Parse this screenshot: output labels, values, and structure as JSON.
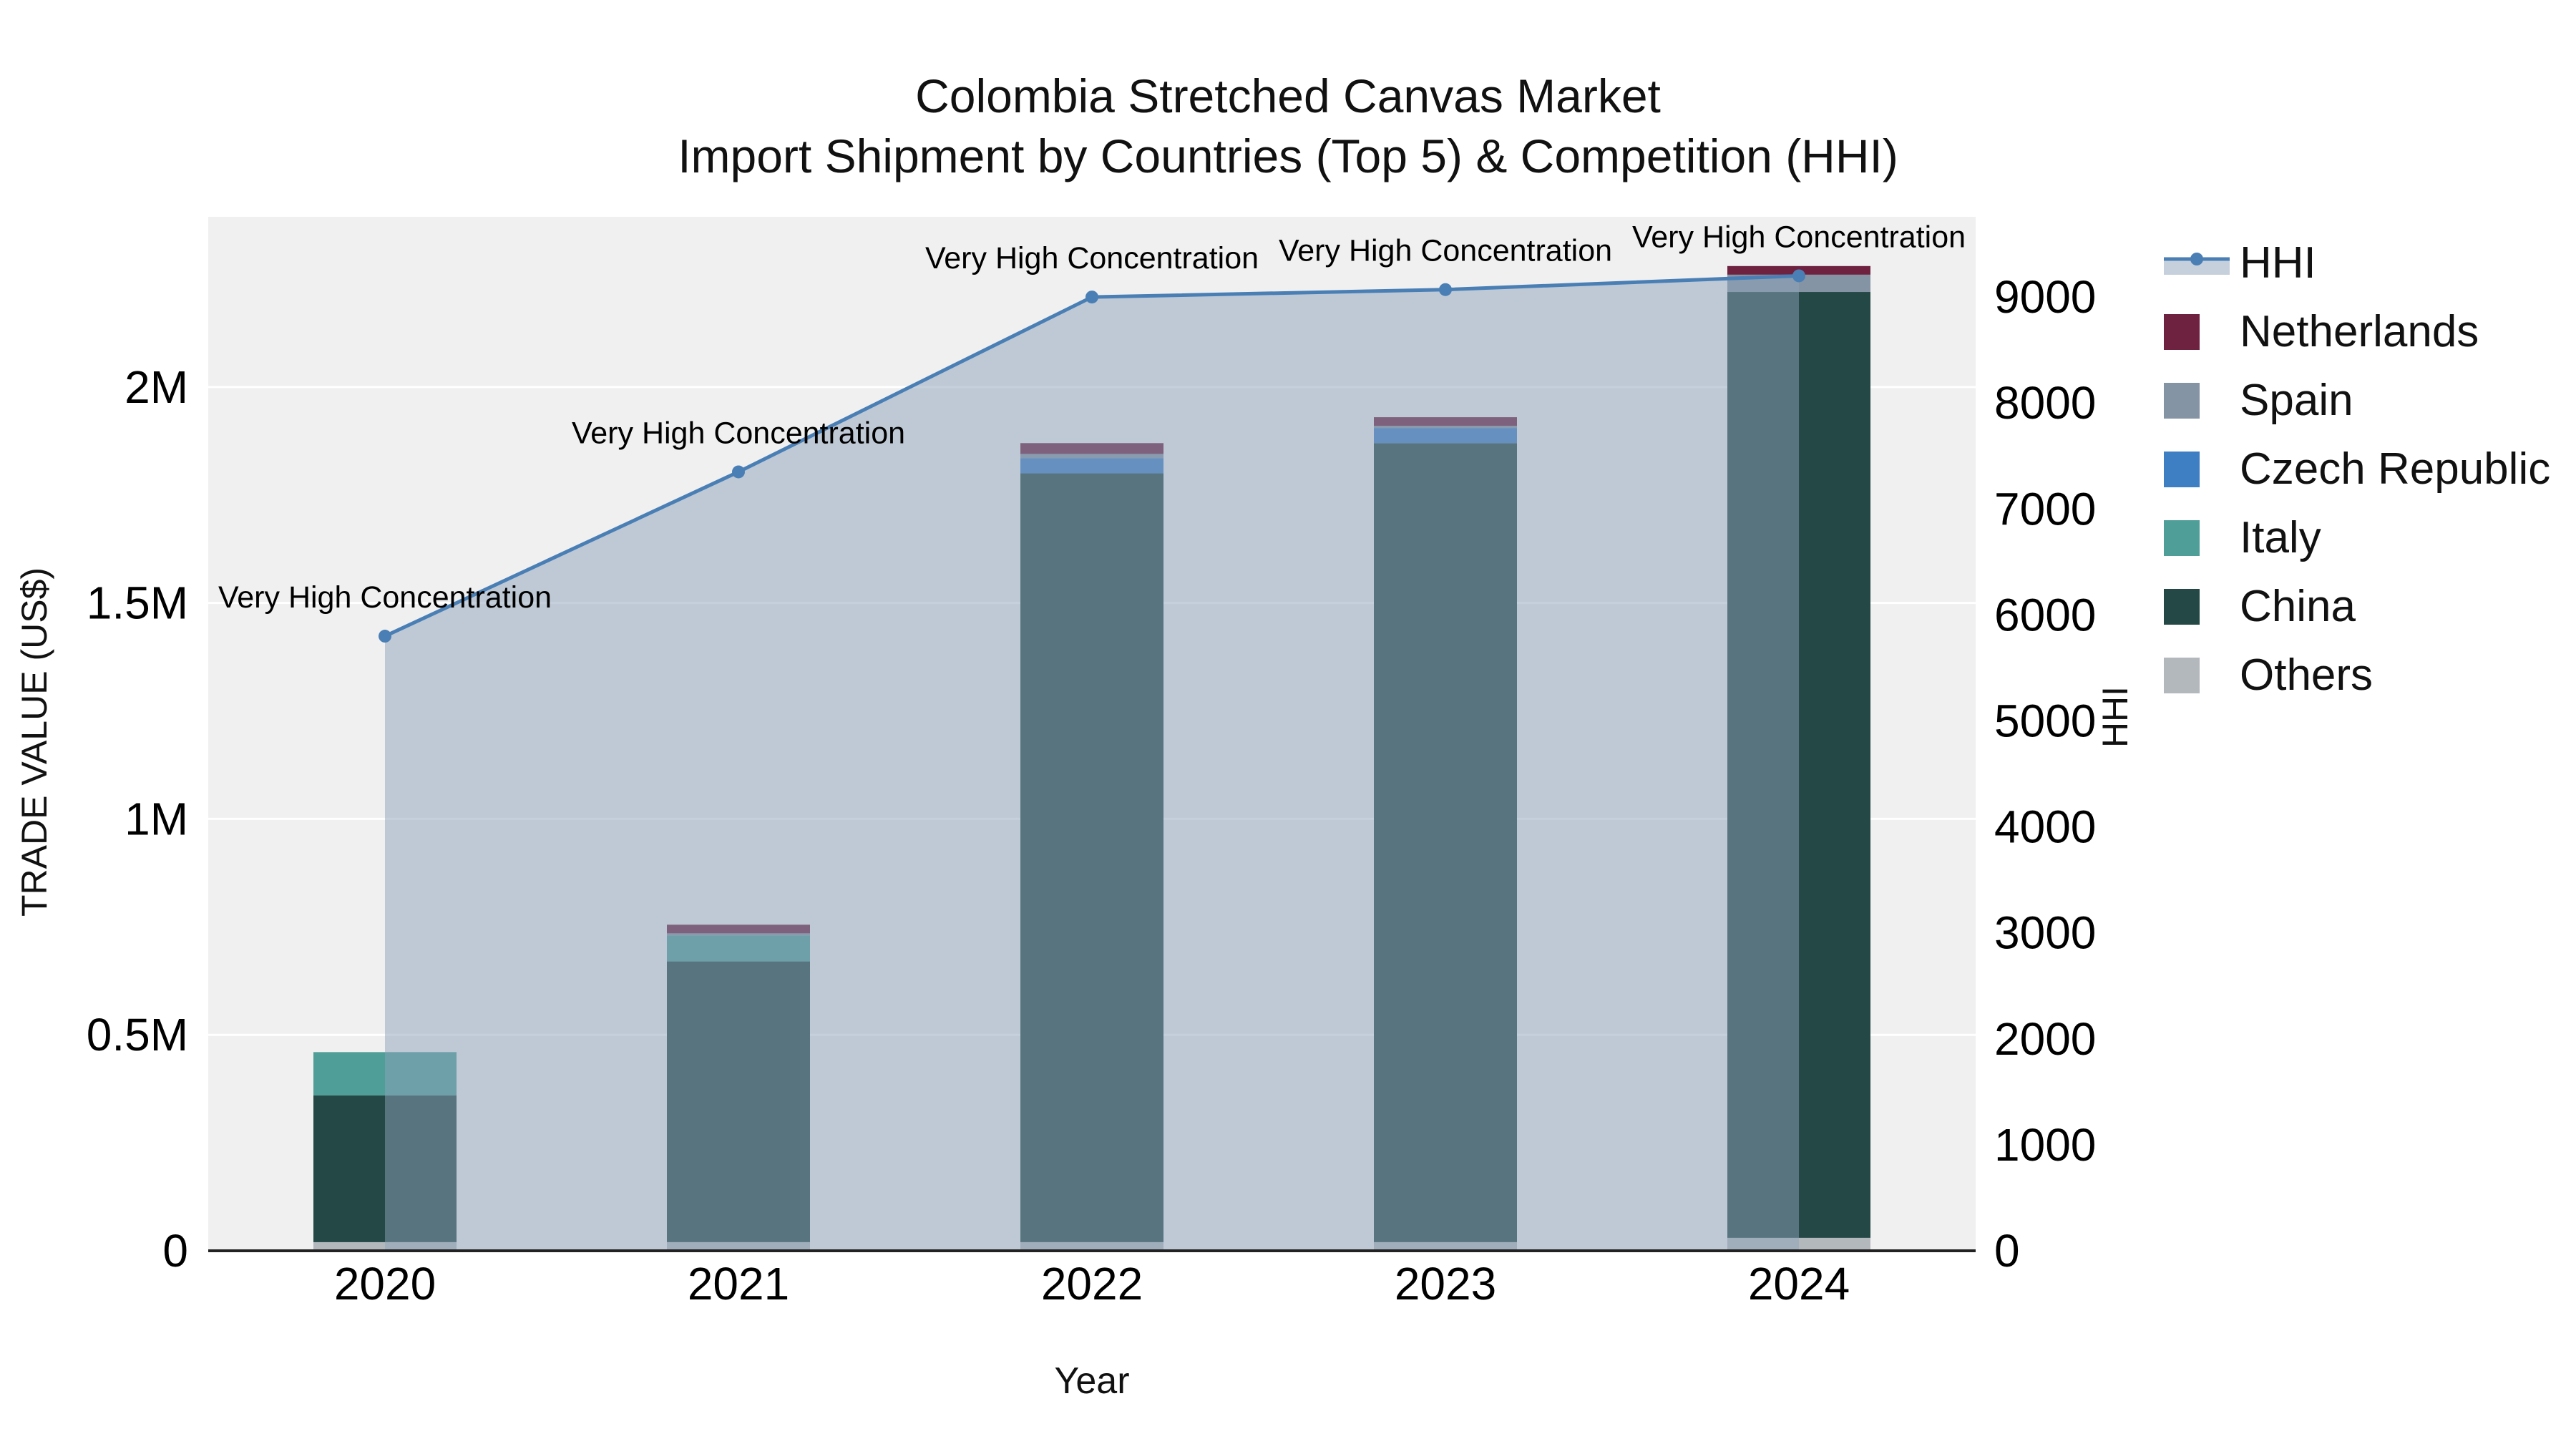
{
  "chart_data": {
    "type": "bar+line",
    "title": "Colombia Stretched Canvas Market",
    "subtitle": "Import Shipment by Countries (Top 5) & Competition (HHI)",
    "xlabel": "Year",
    "ylabel_left": "TRADE VALUE (US$)",
    "ylabel_right": "HHI",
    "categories": [
      "2020",
      "2021",
      "2022",
      "2023",
      "2024"
    ],
    "bar_unit": "million US$",
    "series": [
      {
        "name": "Others",
        "color": "#b3b8bc",
        "values": [
          0.02,
          0.02,
          0.02,
          0.02,
          0.03
        ]
      },
      {
        "name": "China",
        "color": "#234845",
        "values": [
          0.34,
          0.65,
          1.78,
          1.85,
          2.19
        ]
      },
      {
        "name": "Italy",
        "color": "#4f9e98",
        "values": [
          0.1,
          0.06,
          0,
          0,
          0
        ]
      },
      {
        "name": "Czech Republic",
        "color": "#3e7fc4",
        "values": [
          0,
          0,
          0.035,
          0.035,
          0
        ]
      },
      {
        "name": "Spain",
        "color": "#8494a4",
        "values": [
          0,
          0.005,
          0.01,
          0.005,
          0.04
        ]
      },
      {
        "name": "Netherlands",
        "color": "#6e2240",
        "values": [
          0,
          0.02,
          0.025,
          0.02,
          0.02
        ]
      }
    ],
    "hhi": {
      "name": "HHI",
      "color": "#4a7fb5",
      "fill_color": "#8da2ba",
      "fill_opacity": 0.5,
      "values": [
        5800,
        7350,
        9000,
        9070,
        9200
      ],
      "annotations": [
        "Very High Concentration",
        "Very High Concentration",
        "Very High Concentration",
        "Very High Concentration",
        "Very High Concentration"
      ]
    },
    "left_axis": {
      "range": [
        0,
        2.394
      ],
      "ticks": [
        0,
        0.5,
        1,
        1.5,
        2
      ],
      "tick_labels": [
        "0",
        "0.5M",
        "1M",
        "1.5M",
        "2M"
      ]
    },
    "right_axis": {
      "range": [
        0,
        9757
      ],
      "ticks": [
        0,
        1000,
        2000,
        3000,
        4000,
        5000,
        6000,
        7000,
        8000,
        9000
      ]
    },
    "legend": [
      {
        "label": "HHI",
        "type": "line",
        "color": "#4a7fb5"
      },
      {
        "label": "Netherlands",
        "type": "square",
        "color": "#6e2240"
      },
      {
        "label": "Spain",
        "type": "square",
        "color": "#8494a4"
      },
      {
        "label": "Czech Republic",
        "type": "square",
        "color": "#3e7fc4"
      },
      {
        "label": "Italy",
        "type": "square",
        "color": "#4f9e98"
      },
      {
        "label": "China",
        "type": "square",
        "color": "#234845"
      },
      {
        "label": "Others",
        "type": "square",
        "color": "#b3b8bc"
      }
    ],
    "colors": {
      "plot_bg": "#f0f0f0",
      "grid": "#ffffff",
      "axis_line": "#222222",
      "text": "#000000"
    }
  }
}
